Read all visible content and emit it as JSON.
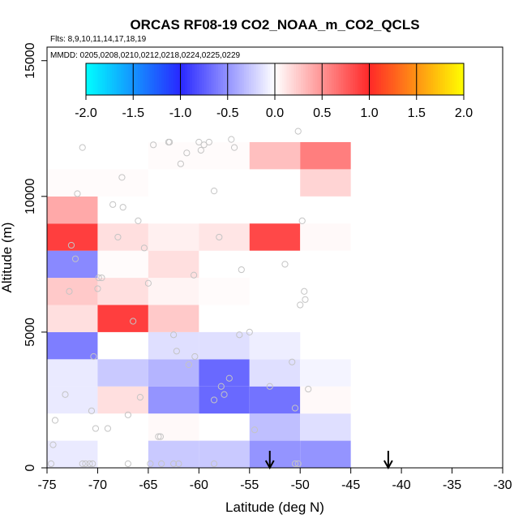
{
  "chart_data": {
    "type": "heatmap",
    "title": "ORCAS RF08-19 CO2_NOAA_m_CO2_QCLS",
    "subtitle_lines": [
      "Flts: 8,9,10,11,14,17,18,19",
      "MMDD: 0205,0208,0210,0212,0218,0224,0225,0229"
    ],
    "xlabel": "Latitude (deg N)",
    "ylabel": "Altitude (m)",
    "xlim": [
      -75,
      -30
    ],
    "ylim": [
      0,
      15500
    ],
    "x_ticks": [
      -75,
      -70,
      -65,
      -60,
      -55,
      -50,
      -45,
      -40,
      -35,
      -30
    ],
    "y_ticks": [
      0,
      5000,
      10000,
      15000
    ],
    "cell_width_deg": 5,
    "cell_height_m": 1000,
    "colorbar": {
      "min": -2.0,
      "max": 2.0,
      "ticks": [
        -2.0,
        -1.5,
        -1.0,
        -0.5,
        0.0,
        0.5,
        1.0,
        1.5,
        2.0
      ],
      "tick_labels": [
        "-2.0",
        "-1.5",
        "-1.0",
        "-0.5",
        "0.0",
        "0.5",
        "1.0",
        "1.5",
        "2.0"
      ]
    },
    "cells": [
      {
        "lat": -75,
        "alt": 0,
        "value": -0.1
      },
      {
        "lat": -65,
        "alt": 0,
        "value": -0.25
      },
      {
        "lat": -60,
        "alt": 0,
        "value": -0.25
      },
      {
        "lat": -55,
        "alt": 0,
        "value": -0.5
      },
      {
        "lat": -50,
        "alt": 0,
        "value": -0.5
      },
      {
        "lat": -65,
        "alt": 1000,
        "value": 0.03
      },
      {
        "lat": -55,
        "alt": 1000,
        "value": -0.3
      },
      {
        "lat": -50,
        "alt": 1000,
        "value": -0.15
      },
      {
        "lat": -75,
        "alt": 2000,
        "value": -0.1
      },
      {
        "lat": -70,
        "alt": 2000,
        "value": 0.15
      },
      {
        "lat": -65,
        "alt": 2000,
        "value": -0.5
      },
      {
        "lat": -60,
        "alt": 2000,
        "value": -0.7
      },
      {
        "lat": -55,
        "alt": 2000,
        "value": -0.65
      },
      {
        "lat": -50,
        "alt": 2000,
        "value": 0.03
      },
      {
        "lat": -75,
        "alt": 3000,
        "value": -0.1
      },
      {
        "lat": -70,
        "alt": 3000,
        "value": -0.25
      },
      {
        "lat": -65,
        "alt": 3000,
        "value": -0.35
      },
      {
        "lat": -60,
        "alt": 3000,
        "value": -0.7
      },
      {
        "lat": -55,
        "alt": 3000,
        "value": -0.15
      },
      {
        "lat": -50,
        "alt": 3000,
        "value": -0.05
      },
      {
        "lat": -75,
        "alt": 4000,
        "value": -0.6
      },
      {
        "lat": -65,
        "alt": 4000,
        "value": -0.15
      },
      {
        "lat": -60,
        "alt": 4000,
        "value": -0.15
      },
      {
        "lat": -55,
        "alt": 4000,
        "value": -0.08
      },
      {
        "lat": -75,
        "alt": 5000,
        "value": 0.15
      },
      {
        "lat": -70,
        "alt": 5000,
        "value": 0.9
      },
      {
        "lat": -65,
        "alt": 5000,
        "value": 0.25
      },
      {
        "lat": -75,
        "alt": 6000,
        "value": 0.25
      },
      {
        "lat": -70,
        "alt": 6000,
        "value": 0.15
      },
      {
        "lat": -65,
        "alt": 6000,
        "value": 0.05
      },
      {
        "lat": -60,
        "alt": 6000,
        "value": 0.02
      },
      {
        "lat": -75,
        "alt": 7000,
        "value": -0.55
      },
      {
        "lat": -70,
        "alt": 7000,
        "value": 0.02
      },
      {
        "lat": -65,
        "alt": 7000,
        "value": 0.15
      },
      {
        "lat": -75,
        "alt": 8000,
        "value": 0.9
      },
      {
        "lat": -70,
        "alt": 8000,
        "value": 0.15
      },
      {
        "lat": -65,
        "alt": 8000,
        "value": 0.07
      },
      {
        "lat": -60,
        "alt": 8000,
        "value": 0.12
      },
      {
        "lat": -55,
        "alt": 8000,
        "value": 0.85
      },
      {
        "lat": -50,
        "alt": 8000,
        "value": 0.03
      },
      {
        "lat": -75,
        "alt": 9000,
        "value": 0.4
      },
      {
        "lat": -75,
        "alt": 10000,
        "value": 0.02
      },
      {
        "lat": -70,
        "alt": 10000,
        "value": 0.02
      },
      {
        "lat": -50,
        "alt": 10000,
        "value": 0.2
      },
      {
        "lat": -65,
        "alt": 11000,
        "value": 0.02
      },
      {
        "lat": -60,
        "alt": 11000,
        "value": 0.02
      },
      {
        "lat": -55,
        "alt": 11000,
        "value": 0.3
      },
      {
        "lat": -50,
        "alt": 11000,
        "value": 0.6
      }
    ],
    "points": [
      [
        -74.6,
        150
      ],
      [
        -74.4,
        850
      ],
      [
        -74.2,
        1750
      ],
      [
        -73.2,
        2700
      ],
      [
        -72.8,
        6500
      ],
      [
        -72.6,
        8200
      ],
      [
        -72.2,
        7700
      ],
      [
        -72.0,
        10100
      ],
      [
        -71.5,
        11800
      ],
      [
        -70.6,
        2100
      ],
      [
        -70.4,
        4100
      ],
      [
        -70.2,
        1450
      ],
      [
        -70.0,
        6600
      ],
      [
        -69.9,
        7000
      ],
      [
        -69.6,
        7000
      ],
      [
        -69.0,
        1450
      ],
      [
        -68.5,
        9700
      ],
      [
        -68.0,
        8500
      ],
      [
        -67.6,
        10700
      ],
      [
        -67.5,
        9600
      ],
      [
        -67.0,
        1950
      ],
      [
        -66.5,
        5400
      ],
      [
        -66.0,
        9100
      ],
      [
        -65.8,
        2600
      ],
      [
        -65.4,
        8100
      ],
      [
        -65.0,
        6800
      ],
      [
        -64.5,
        11900
      ],
      [
        -64.0,
        1150
      ],
      [
        -63.8,
        1150
      ],
      [
        -63.7,
        150
      ],
      [
        -63.0,
        12000
      ],
      [
        -62.9,
        12000
      ],
      [
        -62.5,
        4900
      ],
      [
        -62.2,
        4300
      ],
      [
        -61.8,
        11200
      ],
      [
        -61.2,
        11600
      ],
      [
        -61.0,
        3800
      ],
      [
        -60.5,
        7100
      ],
      [
        -60.4,
        4100
      ],
      [
        -60.0,
        12000
      ],
      [
        -59.8,
        11700
      ],
      [
        -59.5,
        11900
      ],
      [
        -59.0,
        12000
      ],
      [
        -58.5,
        2500
      ],
      [
        -58.5,
        10200
      ],
      [
        -58.0,
        8500
      ],
      [
        -57.8,
        3000
      ],
      [
        -57.5,
        2700
      ],
      [
        -57.0,
        3300
      ],
      [
        -56.8,
        12100
      ],
      [
        -56.5,
        11800
      ],
      [
        -56.0,
        4900
      ],
      [
        -55.8,
        7300
      ],
      [
        -55.0,
        5000
      ],
      [
        -54.5,
        1400
      ],
      [
        -53.0,
        3000
      ],
      [
        -51.5,
        7500
      ],
      [
        -50.8,
        3900
      ],
      [
        -50.5,
        2200
      ],
      [
        -50.2,
        12400
      ],
      [
        -50.0,
        6000
      ],
      [
        -49.8,
        9100
      ],
      [
        -49.6,
        6500
      ],
      [
        -49.5,
        6200
      ],
      [
        -49.2,
        2900
      ],
      [
        -71.5,
        150
      ],
      [
        -71.2,
        150
      ],
      [
        -70.8,
        150
      ],
      [
        -70.5,
        150
      ],
      [
        -67.0,
        150
      ],
      [
        -64.8,
        150
      ],
      [
        -62.5,
        150
      ],
      [
        -62.0,
        150
      ],
      [
        -58.5,
        150
      ],
      [
        -50.5,
        150
      ],
      [
        -50.2,
        150
      ]
    ],
    "arrows": [
      -53.0,
      -41.3
    ]
  }
}
